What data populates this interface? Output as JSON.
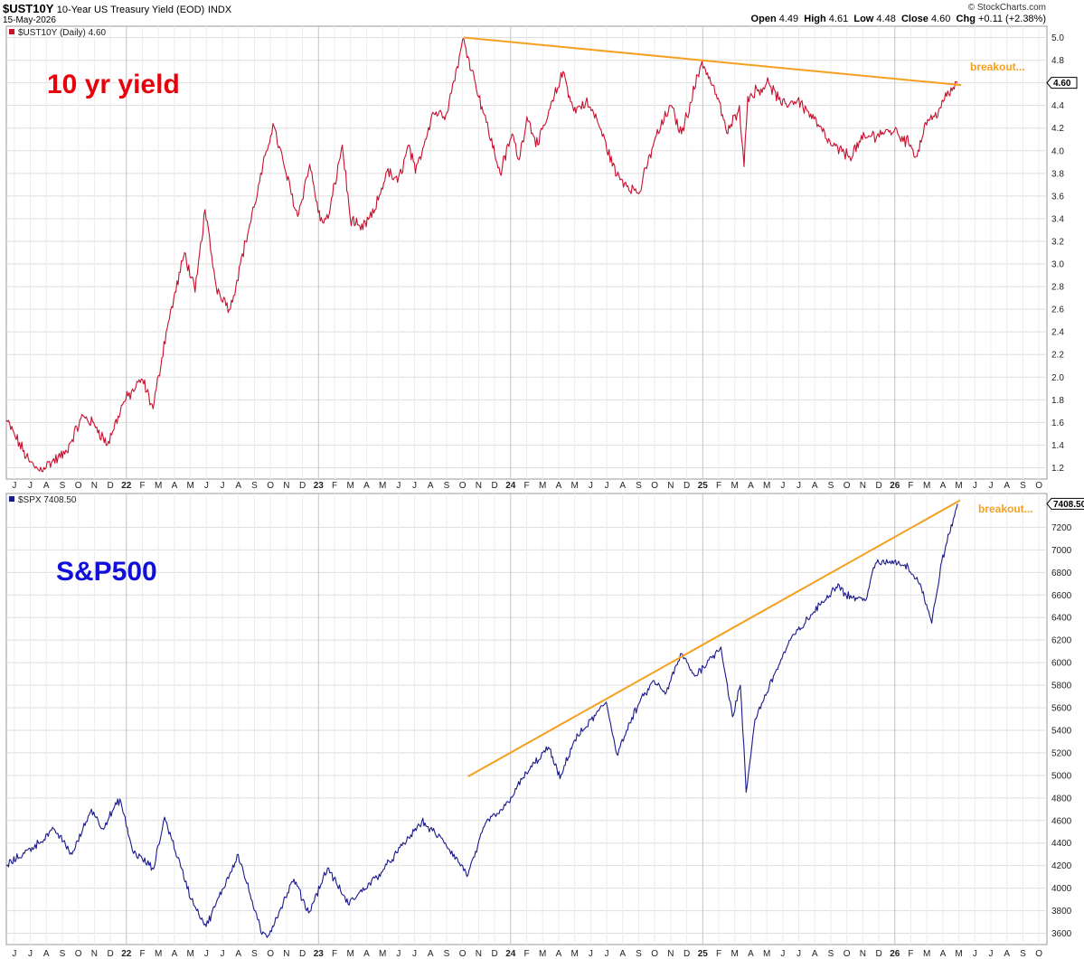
{
  "header": {
    "symbol": "$UST10Y",
    "description": "10-Year US Treasury Yield (EOD)",
    "exchange": "INDX",
    "date": "15-May-2026",
    "brand": "© StockCharts.com",
    "open_label": "Open",
    "open": "4.49",
    "high_label": "High",
    "high": "4.61",
    "low_label": "Low",
    "low": "4.48",
    "close_label": "Close",
    "close": "4.60",
    "chg_label": "Chg",
    "chg": "+0.11 (+2.38%)"
  },
  "colors": {
    "yield_line": "#c8102e",
    "spx_line": "#1a1a8c",
    "trendline": "#f5a020",
    "yield_title": "#e8000b",
    "spx_title": "#1010d8",
    "grid": "#dedede"
  },
  "chart_data": [
    {
      "type": "line",
      "legend": "$UST10Y (Daily) 4.60",
      "overlay_title": "10 yr yield",
      "annotation": "breakout...",
      "last_value_label": "4.60",
      "ylim": [
        1.1,
        5.1
      ],
      "yticks": [
        1.2,
        1.4,
        1.6,
        1.8,
        2.0,
        2.2,
        2.4,
        2.6,
        2.8,
        3.0,
        3.2,
        3.4,
        3.6,
        3.8,
        4.0,
        4.2,
        4.4,
        4.6,
        4.8,
        5.0
      ],
      "ytick_labels": [
        "1.2",
        "1.4",
        "1.6",
        "1.8",
        "2.0",
        "2.2",
        "2.4",
        "2.6",
        "2.8",
        "3.0",
        "3.2",
        "3.4",
        "3.6",
        "3.8",
        "4.0",
        "4.2",
        "4.4",
        "4.6",
        "4.8",
        "5.0"
      ],
      "series": [
        {
          "x": [
            "2021-06-01",
            "2021-07-15",
            "2021-08-01",
            "2021-09-20",
            "2021-10-25",
            "2021-11-20",
            "2021-12-10",
            "2022-01-10",
            "2022-02-15",
            "2022-03-07",
            "2022-04-01",
            "2022-05-06",
            "2022-05-26",
            "2022-06-14",
            "2022-07-05",
            "2022-08-01",
            "2022-08-20",
            "2022-09-15",
            "2022-10-21",
            "2022-11-15",
            "2022-12-07",
            "2022-12-30",
            "2023-01-19",
            "2023-02-03",
            "2023-03-02",
            "2023-03-17",
            "2023-04-06",
            "2023-05-01",
            "2023-05-26",
            "2023-06-15",
            "2023-07-07",
            "2023-07-19",
            "2023-08-21",
            "2023-09-15",
            "2023-10-19",
            "2023-11-10",
            "2023-12-01",
            "2023-12-27",
            "2024-01-19",
            "2024-02-01",
            "2024-02-16",
            "2024-03-08",
            "2024-04-25",
            "2024-05-15",
            "2024-06-07",
            "2024-06-28",
            "2024-08-05",
            "2024-09-16",
            "2024-10-15",
            "2024-11-15",
            "2024-12-06",
            "2025-01-14",
            "2025-02-10",
            "2025-03-04",
            "2025-03-26",
            "2025-04-04",
            "2025-04-11",
            "2025-05-21",
            "2025-06-15",
            "2025-07-15",
            "2025-08-15",
            "2025-09-16",
            "2025-10-22",
            "2025-11-15",
            "2025-12-15",
            "2026-01-15",
            "2026-02-15",
            "2026-02-27",
            "2026-03-15",
            "2026-04-01",
            "2026-04-20",
            "2026-05-15"
          ],
          "y": [
            1.62,
            1.25,
            1.18,
            1.32,
            1.66,
            1.56,
            1.4,
            1.78,
            1.98,
            1.72,
            2.4,
            3.1,
            2.75,
            3.48,
            2.8,
            2.6,
            3.0,
            3.5,
            4.24,
            3.8,
            3.42,
            3.88,
            3.38,
            3.4,
            4.05,
            3.4,
            3.3,
            3.45,
            3.82,
            3.72,
            4.05,
            3.8,
            4.34,
            4.32,
            4.99,
            4.6,
            4.25,
            3.8,
            4.15,
            3.92,
            4.3,
            4.05,
            4.7,
            4.35,
            4.43,
            4.28,
            3.78,
            3.62,
            4.08,
            4.4,
            4.15,
            4.79,
            4.5,
            4.15,
            4.4,
            3.86,
            4.48,
            4.6,
            4.4,
            4.45,
            4.28,
            4.05,
            3.95,
            4.1,
            4.15,
            4.18,
            4.05,
            3.95,
            4.25,
            4.3,
            4.45,
            4.6
          ]
        }
      ],
      "trendline": {
        "x": [
          "2023-10-19",
          "2026-05-22"
        ],
        "y": [
          5.0,
          4.58
        ]
      }
    },
    {
      "type": "line",
      "legend": "$SPX 7408.50",
      "overlay_title": "S&P500",
      "annotation": "breakout...",
      "last_value_label": "7408.50",
      "ylim": [
        3500,
        7500
      ],
      "yticks": [
        3600,
        3800,
        4000,
        4200,
        4400,
        4600,
        4800,
        5000,
        5200,
        5400,
        5600,
        5800,
        6000,
        6200,
        6400,
        6600,
        6800,
        7000,
        7200
      ],
      "ytick_labels": [
        "3600",
        "3800",
        "4000",
        "4200",
        "4400",
        "4600",
        "4800",
        "5000",
        "5200",
        "5400",
        "5600",
        "5800",
        "6000",
        "6200",
        "6400",
        "6600",
        "6800",
        "7000",
        "7200"
      ],
      "series": [
        {
          "x": [
            "2021-06-01",
            "2021-08-01",
            "2021-09-01",
            "2021-10-04",
            "2021-11-10",
            "2021-12-01",
            "2022-01-03",
            "2022-01-27",
            "2022-03-08",
            "2022-03-29",
            "2022-05-19",
            "2022-06-16",
            "2022-08-16",
            "2022-09-30",
            "2022-10-12",
            "2022-11-30",
            "2022-12-28",
            "2023-02-02",
            "2023-03-13",
            "2023-05-15",
            "2023-07-31",
            "2023-09-10",
            "2023-10-27",
            "2023-12-01",
            "2024-01-02",
            "2024-02-15",
            "2024-03-28",
            "2024-04-19",
            "2024-05-15",
            "2024-07-16",
            "2024-08-05",
            "2024-09-15",
            "2024-10-15",
            "2024-11-05",
            "2024-12-06",
            "2024-12-31",
            "2025-02-19",
            "2025-03-13",
            "2025-03-28",
            "2025-04-08",
            "2025-04-25",
            "2025-06-01",
            "2025-07-01",
            "2025-08-15",
            "2025-09-30",
            "2025-10-15",
            "2025-11-20",
            "2025-12-10",
            "2026-01-15",
            "2026-02-10",
            "2026-03-05",
            "2026-03-27",
            "2026-04-15",
            "2026-05-15"
          ],
          "y": [
            4200,
            4400,
            4520,
            4300,
            4700,
            4530,
            4790,
            4330,
            4170,
            4630,
            3900,
            3660,
            4300,
            3590,
            3580,
            4080,
            3780,
            4180,
            3860,
            4140,
            4590,
            4420,
            4117,
            4590,
            4700,
            5020,
            5250,
            4970,
            5300,
            5650,
            5190,
            5630,
            5840,
            5720,
            6080,
            5880,
            6140,
            5520,
            5800,
            4850,
            5500,
            5900,
            6200,
            6450,
            6700,
            6600,
            6550,
            6880,
            6900,
            6850,
            6700,
            6350,
            6900,
            7408.5
          ]
        }
      ],
      "trendline": {
        "x": [
          "2023-10-27",
          "2026-05-20"
        ],
        "y": [
          4990,
          7440
        ]
      }
    }
  ],
  "x_axis": {
    "labels": [
      "J",
      "J",
      "A",
      "S",
      "O",
      "N",
      "D",
      "22",
      "F",
      "M",
      "A",
      "M",
      "J",
      "J",
      "A",
      "S",
      "O",
      "N",
      "D",
      "23",
      "F",
      "M",
      "A",
      "M",
      "J",
      "J",
      "A",
      "S",
      "O",
      "N",
      "D",
      "24",
      "F",
      "M",
      "A",
      "M",
      "J",
      "J",
      "A",
      "S",
      "O",
      "N",
      "D",
      "25",
      "F",
      "M",
      "A",
      "M",
      "J",
      "J",
      "A",
      "S",
      "O",
      "N",
      "D",
      "26",
      "F",
      "M",
      "A",
      "M",
      "J",
      "J",
      "A",
      "S",
      "O"
    ],
    "year_labels": [
      "22",
      "23",
      "24",
      "25",
      "26"
    ]
  }
}
